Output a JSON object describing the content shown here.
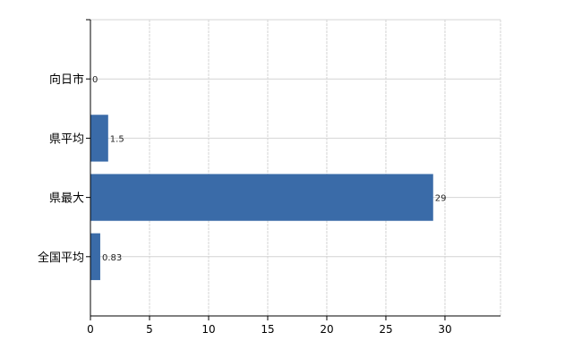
{
  "chart_data": {
    "type": "bar",
    "orientation": "horizontal",
    "categories": [
      "向日市",
      "県平均",
      "県最大",
      "全国平均"
    ],
    "values": [
      0,
      1.5,
      29,
      0.83
    ],
    "data_labels": [
      "0",
      "1.5",
      "29",
      "0.83"
    ],
    "title": "",
    "xlabel": "",
    "ylabel": "",
    "xlim": [
      0,
      34.7
    ],
    "xticks": [
      0,
      5,
      10,
      15,
      20,
      25,
      30
    ],
    "xtick_labels": [
      "0",
      "5",
      "10",
      "15",
      "20",
      "25",
      "30"
    ],
    "grid": true,
    "bar_color": "#3a6ba8"
  }
}
